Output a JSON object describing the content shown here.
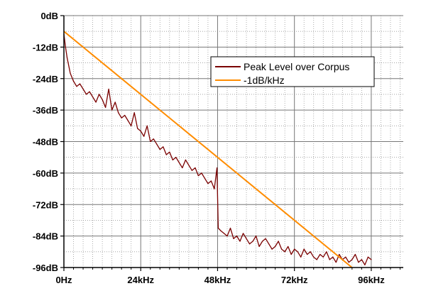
{
  "chart_data": {
    "type": "line",
    "title": "",
    "xlabel": "",
    "ylabel": "",
    "xlim": [
      0,
      106
    ],
    "ylim": [
      -96,
      0
    ],
    "x_ticks": [
      0,
      24,
      48,
      72,
      96
    ],
    "x_tick_labels": [
      "0Hz",
      "24kHz",
      "48kHz",
      "72kHz",
      "96kHz"
    ],
    "y_ticks": [
      0,
      -12,
      -24,
      -36,
      -48,
      -60,
      -72,
      -84,
      -96
    ],
    "y_tick_labels": [
      "0dB",
      "-12dB",
      "-24dB",
      "-36dB",
      "-48dB",
      "-60dB",
      "-72dB",
      "-84dB",
      "-96dB"
    ],
    "grid": true,
    "legend_position": "top-right",
    "series": [
      {
        "name": "Peak Level over Corpus",
        "color": "#7a0000",
        "x": [
          0,
          0.5,
          1,
          2,
          3,
          4,
          5,
          6,
          7,
          8,
          9,
          10,
          11,
          12,
          13,
          14,
          15,
          16,
          17,
          18,
          19,
          20,
          21,
          22,
          23,
          24,
          25,
          26,
          27,
          28,
          29,
          30,
          31,
          32,
          33,
          34,
          35,
          36,
          37,
          38,
          39,
          40,
          41,
          42,
          43,
          44,
          45,
          46,
          47,
          47.8,
          48.2,
          49,
          50,
          51,
          52,
          53,
          54,
          55,
          56,
          57,
          58,
          59,
          60,
          61,
          62,
          63,
          64,
          65,
          66,
          67,
          68,
          69,
          70,
          71,
          72,
          73,
          74,
          75,
          76,
          77,
          78,
          79,
          80,
          81,
          82,
          83,
          84,
          85,
          86,
          87,
          88,
          89,
          90,
          91,
          92,
          93,
          94,
          95,
          96
        ],
        "values": [
          -7,
          -12,
          -16,
          -22,
          -25,
          -27,
          -26,
          -28,
          -30,
          -29,
          -31,
          -33,
          -30,
          -32,
          -35,
          -28,
          -36,
          -33,
          -37,
          -39,
          -38,
          -40,
          -42,
          -37,
          -43,
          -44,
          -46,
          -42,
          -48,
          -47,
          -49,
          -51,
          -50,
          -53,
          -52,
          -55,
          -54,
          -56,
          -58,
          -55,
          -57,
          -59,
          -58,
          -61,
          -60,
          -62,
          -64,
          -63,
          -66,
          -58,
          -81,
          -82,
          -83,
          -84,
          -81,
          -85,
          -84,
          -86,
          -83,
          -85,
          -87,
          -86,
          -84,
          -88,
          -86,
          -85,
          -87,
          -89,
          -88,
          -86,
          -89,
          -90,
          -88,
          -91,
          -89,
          -90,
          -92,
          -89,
          -91,
          -90,
          -92,
          -93,
          -91,
          -92,
          -90,
          -93,
          -92,
          -94,
          -91,
          -93,
          -92,
          -94,
          -93,
          -91,
          -94,
          -93,
          -95,
          -92,
          -93
        ]
      },
      {
        "name": "-1dB/kHz",
        "color": "#ff8c00",
        "x": [
          0,
          90
        ],
        "values": [
          -6,
          -96
        ]
      }
    ]
  }
}
